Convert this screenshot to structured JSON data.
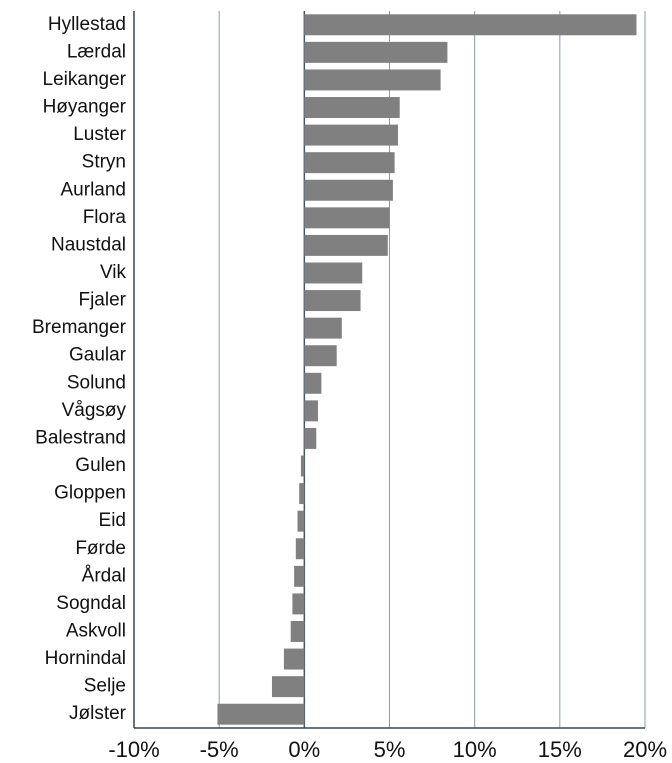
{
  "chart_data": {
    "type": "barh",
    "color": "#808080",
    "grid": true,
    "categories": [
      "Hyllestad",
      "Lærdal",
      "Leikanger",
      "Høyanger",
      "Luster",
      "Stryn",
      "Aurland",
      "Flora",
      "Naustdal",
      "Vik",
      "Fjaler",
      "Bremanger",
      "Gaular",
      "Solund",
      "Vågsøy",
      "Balestrand",
      "Gulen",
      "Gloppen",
      "Eid",
      "Førde",
      "Årdal",
      "Sogndal",
      "Askvoll",
      "Hornindal",
      "Selje",
      "Jølster"
    ],
    "values": [
      19.5,
      8.4,
      8.0,
      5.6,
      5.5,
      5.3,
      5.2,
      5.0,
      4.9,
      3.4,
      3.3,
      2.2,
      1.9,
      1.0,
      0.8,
      0.7,
      -0.2,
      -0.3,
      -0.4,
      -0.5,
      -0.6,
      -0.7,
      -0.8,
      -1.2,
      -1.9,
      -5.1
    ],
    "xlim": [
      -10,
      20
    ],
    "xticks": [
      {
        "value": -10,
        "label": "-10%"
      },
      {
        "value": -5,
        "label": "-5%"
      },
      {
        "value": 0,
        "label": "0%"
      },
      {
        "value": 5,
        "label": "5%"
      },
      {
        "value": 10,
        "label": "10%"
      },
      {
        "value": 15,
        "label": "15%"
      },
      {
        "value": 20,
        "label": "20%"
      }
    ]
  }
}
